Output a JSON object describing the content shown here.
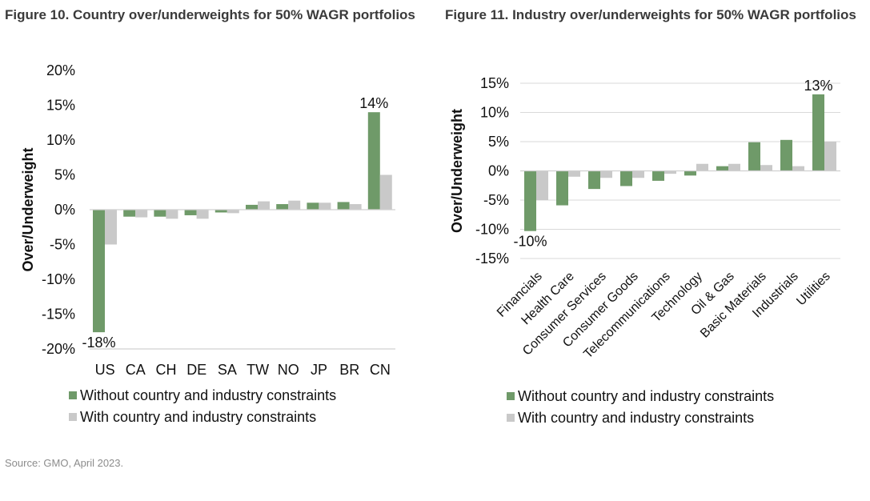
{
  "figures": {
    "left_title": "Figure 10. Country over/underweights for 50% WAGR portfolios",
    "right_title": "Figure 11. Industry over/underweights for 50% WAGR portfolios"
  },
  "source": "Source: GMO, April 2023.",
  "colors": {
    "without": "#6f9a69",
    "with": "#c9c9c9",
    "grid": "#d9d9d9"
  },
  "chart_data": [
    {
      "type": "bar",
      "title": "Figure 10. Country over/underweights for 50% WAGR portfolios",
      "ylabel": "Over/Underweight",
      "xlabel": "",
      "ylim": [
        -20,
        20
      ],
      "yticks": [
        20,
        15,
        10,
        5,
        0,
        -5,
        -10,
        -15,
        -20
      ],
      "ytick_labels": [
        "20%",
        "15%",
        "10%",
        "5%",
        "0%",
        "-5%",
        "-10%",
        "-15%",
        "-20%"
      ],
      "grid": false,
      "legend_position": "bottom",
      "categories": [
        "US",
        "CA",
        "CH",
        "DE",
        "SA",
        "TW",
        "NO",
        "JP",
        "BR",
        "CN"
      ],
      "series": [
        {
          "name": "Without country and industry constraints",
          "values": [
            -17.6,
            -1.0,
            -1.0,
            -0.8,
            -0.4,
            0.7,
            0.8,
            1.0,
            1.1,
            14.0
          ]
        },
        {
          "name": "With country and industry constraints",
          "values": [
            -5.0,
            -1.1,
            -1.3,
            -1.3,
            -0.5,
            1.2,
            1.3,
            1.0,
            0.8,
            5.0
          ]
        }
      ],
      "annotations": [
        {
          "category": "US",
          "text": "-18%"
        },
        {
          "category": "CN",
          "text": "14%"
        }
      ]
    },
    {
      "type": "bar",
      "title": "Figure 11. Industry over/underweights for 50% WAGR portfolios",
      "ylabel": "Over/Underweight",
      "xlabel": "",
      "ylim": [
        -15,
        15
      ],
      "yticks": [
        15,
        10,
        5,
        0,
        -5,
        -10,
        -15
      ],
      "ytick_labels": [
        "15%",
        "10%",
        "5%",
        "0%",
        "-5%",
        "-10%",
        "-15%"
      ],
      "grid": true,
      "legend_position": "bottom",
      "categories": [
        "Financials",
        "Health Care",
        "Consumer Services",
        "Consumer Goods",
        "Telecommunications",
        "Technology",
        "Oil & Gas",
        "Basic Materials",
        "Industrials",
        "Utilities"
      ],
      "series": [
        {
          "name": "Without country and industry constraints",
          "values": [
            -10.3,
            -5.9,
            -3.1,
            -2.6,
            -1.7,
            -0.8,
            0.8,
            4.9,
            5.3,
            13.1
          ]
        },
        {
          "name": "With country and industry constraints",
          "values": [
            -5.0,
            -1.0,
            -1.2,
            -1.2,
            -0.5,
            1.2,
            1.2,
            1.0,
            0.8,
            5.0
          ]
        }
      ],
      "annotations": [
        {
          "category": "Financials",
          "text": "-10%"
        },
        {
          "category": "Utilities",
          "text": "13%"
        }
      ]
    }
  ]
}
